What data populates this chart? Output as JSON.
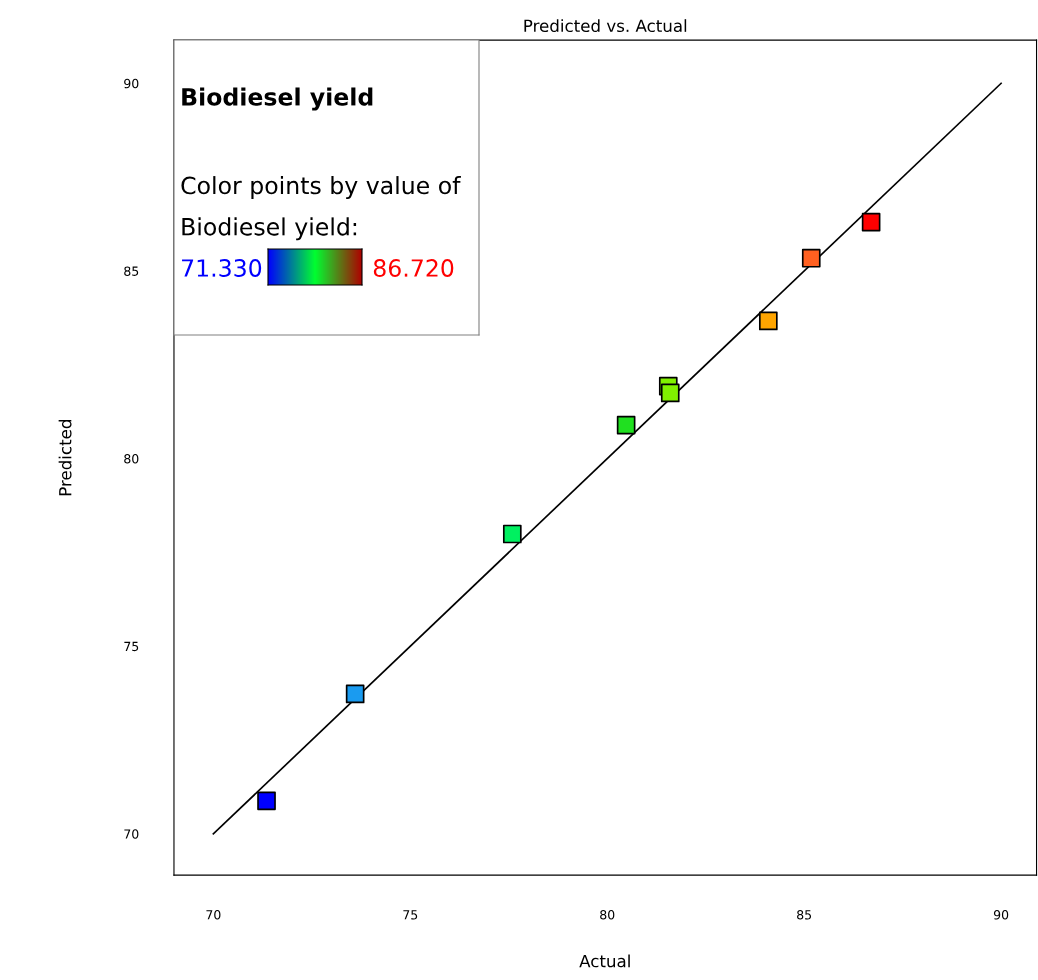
{
  "chart_data": {
    "type": "scatter",
    "title": "Predicted vs. Actual",
    "xlabel": "Actual",
    "ylabel": "Predicted",
    "legend_title": "Biodiesel yield",
    "annotations": [
      "Color points by value of",
      "Biodiesel yield:",
      "71.330",
      "86.720"
    ],
    "series": [
      {
        "x": [
          71.35,
          73.6,
          77.59,
          80.48,
          81.55,
          81.6,
          84.09,
          85.18,
          86.7
        ],
        "values": [
          70.88,
          73.73,
          77.99,
          80.89,
          81.93,
          81.75,
          83.67,
          85.34,
          86.3
        ],
        "colors": [
          "#0000ff",
          "#1a9bf0",
          "#00f060",
          "#20e020",
          "#80f000",
          "#80f000",
          "#ffa500",
          "#ff6020",
          "#ff0000"
        ],
        "marker": "square"
      },
      {
        "type": "line",
        "x": [
          70,
          90
        ],
        "values": [
          70,
          90
        ],
        "color": "#000000"
      }
    ],
    "xlim": [
      69,
      90.9
    ],
    "ylim": [
      68.9,
      91.15
    ],
    "xticks": [
      70,
      75,
      80,
      85,
      90
    ],
    "yticks": [
      70,
      75,
      80,
      85,
      90
    ],
    "grid": false
  }
}
